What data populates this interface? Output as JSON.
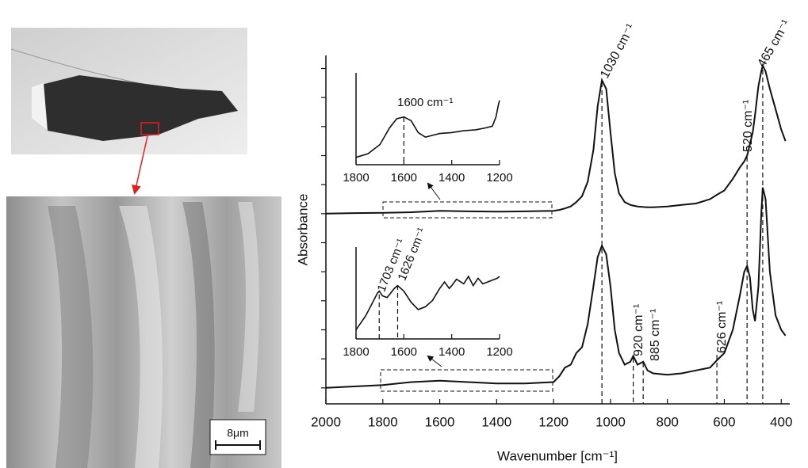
{
  "chart_data": [
    {
      "type": "line",
      "x_label": "Wavenumber [cm⁻¹]",
      "y_label": "Absorbance",
      "x": [
        2000,
        1900,
        1800,
        1700,
        1600,
        1500,
        1400,
        1300,
        1200,
        1180,
        1160,
        1140,
        1120,
        1100,
        1080,
        1060,
        1045,
        1030,
        1015,
        1000,
        985,
        970,
        950,
        930,
        920,
        905,
        885,
        870,
        850,
        800,
        750,
        700,
        650,
        626,
        600,
        570,
        545,
        530,
        520,
        510,
        500,
        492,
        480,
        470,
        465,
        455,
        440,
        420,
        400,
        385
      ],
      "series": [
        {
          "color": "#111111",
          "values": [
            60,
            60.2,
            60.3,
            60.5,
            61,
            60.8,
            60.7,
            60.8,
            61,
            61.3,
            61.8,
            62.5,
            64,
            66,
            71,
            82,
            97,
            106,
            103,
            88,
            74,
            67,
            64,
            63,
            62.8,
            62.5,
            62.3,
            62.2,
            62.2,
            62.5,
            63,
            63.5,
            65,
            66.5,
            68,
            72,
            76,
            78,
            80,
            84,
            88,
            94,
            104,
            109,
            111,
            109,
            103,
            96,
            89,
            85
          ]
        },
        {
          "color": "#111111",
          "values": [
            0,
            0.5,
            1,
            2,
            2.5,
            2,
            1.5,
            1.5,
            2,
            4,
            7,
            8,
            12,
            14,
            22,
            35,
            45,
            49,
            46,
            35,
            20,
            12,
            8,
            9,
            11,
            8,
            9,
            6,
            5,
            4.5,
            5,
            6,
            7,
            9.5,
            12,
            20,
            32,
            40,
            42,
            38,
            27,
            23,
            35,
            60,
            69,
            65,
            40,
            25,
            20,
            18
          ]
        }
      ],
      "xlim": [
        2000,
        370
      ],
      "ylim": [
        -5.5,
        114.5
      ],
      "xticks": [
        2000,
        1800,
        1600,
        1400,
        1200,
        1000,
        800,
        600,
        400
      ],
      "yticks": [
        0,
        10,
        20,
        30,
        40,
        50,
        60,
        70,
        80,
        90,
        100,
        110
      ],
      "annotations": [
        {
          "text": "1030 cm⁻¹",
          "x": 1030
        },
        {
          "text": "520 cm⁻¹",
          "x": 520
        },
        {
          "text": "465 cm⁻¹",
          "x": 465
        },
        {
          "text": "920 cm⁻¹",
          "x": 920
        },
        {
          "text": "885 cm⁻¹",
          "x": 885
        },
        {
          "text": "626 cm⁻¹",
          "x": 626
        }
      ]
    },
    {
      "type": "line",
      "x": [
        1800,
        1750,
        1700,
        1660,
        1630,
        1600,
        1570,
        1540,
        1510,
        1480,
        1450,
        1400,
        1350,
        1300,
        1260,
        1230,
        1215,
        1205,
        1200
      ],
      "series": [
        {
          "color": "#111111",
          "values": [
            8,
            12,
            22,
            40,
            50,
            52,
            48,
            35,
            30,
            32,
            34,
            35,
            37,
            38,
            40,
            42,
            52,
            65,
            70
          ]
        }
      ],
      "xlim": [
        1800,
        1200
      ],
      "ylim": [
        0,
        100
      ],
      "xticks": [
        1800,
        1600,
        1400,
        1200
      ],
      "annotations": [
        {
          "text": "1600 cm⁻¹",
          "x": 1600
        }
      ]
    },
    {
      "type": "line",
      "x": [
        1800,
        1760,
        1730,
        1710,
        1703,
        1690,
        1670,
        1640,
        1626,
        1600,
        1570,
        1540,
        1510,
        1480,
        1450,
        1430,
        1410,
        1400,
        1380,
        1350,
        1330,
        1310,
        1290,
        1270,
        1250,
        1230,
        1210,
        1200
      ],
      "series": [
        {
          "color": "#111111",
          "values": [
            10,
            25,
            40,
            50,
            52,
            47,
            45,
            55,
            58,
            52,
            40,
            32,
            35,
            42,
            55,
            62,
            55,
            58,
            65,
            60,
            68,
            58,
            66,
            60,
            62,
            64,
            66,
            68
          ]
        }
      ],
      "xlim": [
        1800,
        1200
      ],
      "ylim": [
        0,
        100
      ],
      "xticks": [
        1800,
        1600,
        1400,
        1200
      ],
      "annotations": [
        {
          "text": "1703 cm⁻¹",
          "x": 1703
        },
        {
          "text": "1626 cm⁻¹",
          "x": 1626
        }
      ]
    }
  ],
  "sem_scale_bar": "8μm"
}
